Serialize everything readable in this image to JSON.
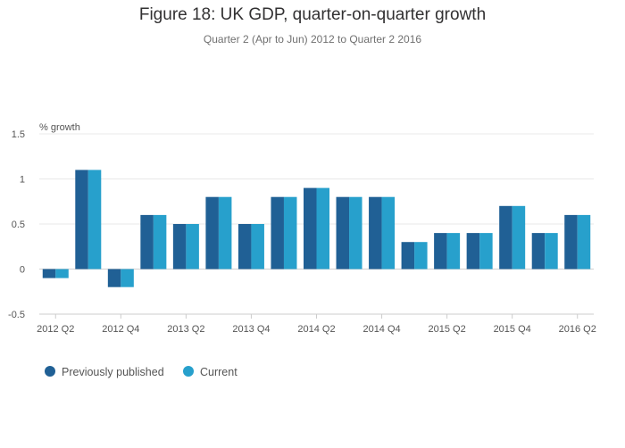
{
  "chart_data": {
    "type": "bar",
    "title": "Figure 18: UK GDP, quarter-on-quarter growth",
    "subtitle": "Quarter 2 (Apr to Jun) 2012 to Quarter 2 2016",
    "ylabel": "% growth",
    "xlabel": "",
    "ylim": [
      -0.5,
      1.5
    ],
    "yticks": [
      "1.5",
      "1",
      "0.5",
      "0",
      "-0.5"
    ],
    "ytick_values": [
      1.5,
      1,
      0.5,
      0,
      -0.5
    ],
    "grid": true,
    "legend_position": "bottom-left",
    "categories": [
      "2012 Q2",
      "2012 Q3",
      "2012 Q4",
      "2013 Q1",
      "2013 Q2",
      "2013 Q3",
      "2013 Q4",
      "2014 Q1",
      "2014 Q2",
      "2014 Q3",
      "2014 Q4",
      "2015 Q1",
      "2015 Q2",
      "2015 Q3",
      "2015 Q4",
      "2016 Q1",
      "2016 Q2"
    ],
    "xtick_labels": [
      "2012 Q2",
      "2012 Q4",
      "2013 Q2",
      "2013 Q4",
      "2014 Q2",
      "2014 Q4",
      "2015 Q2",
      "2015 Q4",
      "2016 Q2"
    ],
    "series": [
      {
        "name": "Previously published",
        "color": "#206095",
        "values": [
          -0.1,
          1.1,
          -0.2,
          0.6,
          0.5,
          0.8,
          0.5,
          0.8,
          0.9,
          0.8,
          0.8,
          0.3,
          0.4,
          0.4,
          0.7,
          0.4,
          0.6
        ]
      },
      {
        "name": "Current",
        "color": "#27a0cc",
        "values": [
          -0.1,
          1.1,
          -0.2,
          0.6,
          0.5,
          0.8,
          0.5,
          0.8,
          0.9,
          0.8,
          0.8,
          0.3,
          0.4,
          0.4,
          0.7,
          0.4,
          0.6
        ]
      }
    ]
  }
}
